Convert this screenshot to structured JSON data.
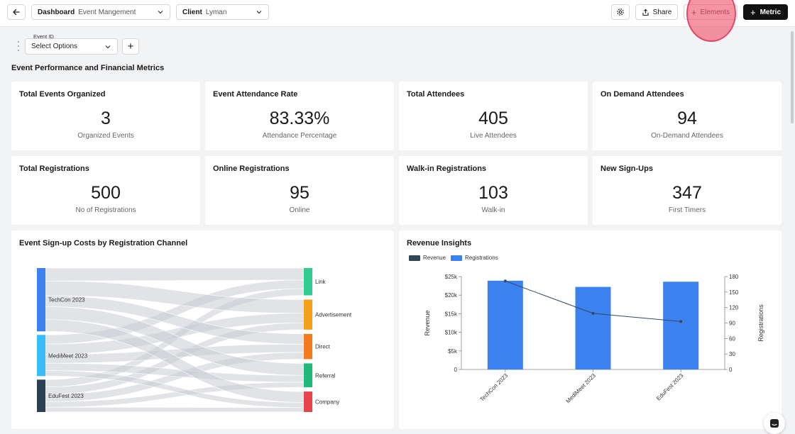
{
  "topbar": {
    "dashboard_label": "Dashboard",
    "dashboard_value": "Event Mangement",
    "client_label": "Client",
    "client_value": "Lyman",
    "share_label": "Share",
    "elements_label": "Elements",
    "metric_label": "Metric"
  },
  "filter": {
    "label": "Event ID",
    "placeholder": "Select Options"
  },
  "section_title": "Event Performance and Financial Metrics",
  "kpis": [
    {
      "title": "Total Events Organized",
      "value": "3",
      "sub": "Organized Events"
    },
    {
      "title": "Event Attendance Rate",
      "value": "83.33%",
      "sub": "Attendance Percentage"
    },
    {
      "title": "Total Attendees",
      "value": "405",
      "sub": "Live Attendees"
    },
    {
      "title": "On Demand Attendees",
      "value": "94",
      "sub": "On-Demand Attendees"
    },
    {
      "title": "Total Registrations",
      "value": "500",
      "sub": "No of Registrations"
    },
    {
      "title": "Online Registrations",
      "value": "95",
      "sub": "Online"
    },
    {
      "title": "Walk-in Registrations",
      "value": "103",
      "sub": "Walk-in"
    },
    {
      "title": "New Sign-Ups",
      "value": "347",
      "sub": "First Timers"
    }
  ],
  "colors": {
    "revenue": "#33475b",
    "registrations": "#3b82f0",
    "primary_button": "#111111",
    "techcon": "#3b82f0",
    "medimeet": "#38bdf8",
    "edufest": "#2d3f55",
    "link": "#2ecc8f",
    "advertisement": "#f5a01a",
    "direct": "#f47a22",
    "referral": "#1fba7a",
    "company": "#e8424a"
  },
  "chart_data": [
    {
      "type": "sankey",
      "title": "Event Sign-up Costs by Registration Channel",
      "sources": [
        {
          "name": "TechCon 2023",
          "weight": 172
        },
        {
          "name": "MediMeet 2023",
          "weight": 112
        },
        {
          "name": "EduFest 2023",
          "weight": 88
        }
      ],
      "targets": [
        {
          "name": "Link",
          "weight": 80
        },
        {
          "name": "Advertisement",
          "weight": 88
        },
        {
          "name": "Direct",
          "weight": 74
        },
        {
          "name": "Referral",
          "weight": 70
        },
        {
          "name": "Company",
          "weight": 60
        }
      ],
      "links": [
        {
          "source": "TechCon 2023",
          "target": "Link",
          "value": 35
        },
        {
          "source": "TechCon 2023",
          "target": "Advertisement",
          "value": 40
        },
        {
          "source": "TechCon 2023",
          "target": "Direct",
          "value": 30
        },
        {
          "source": "TechCon 2023",
          "target": "Referral",
          "value": 35
        },
        {
          "source": "TechCon 2023",
          "target": "Company",
          "value": 32
        },
        {
          "source": "MediMeet 2023",
          "target": "Link",
          "value": 25
        },
        {
          "source": "MediMeet 2023",
          "target": "Advertisement",
          "value": 28
        },
        {
          "source": "MediMeet 2023",
          "target": "Direct",
          "value": 24
        },
        {
          "source": "MediMeet 2023",
          "target": "Referral",
          "value": 20
        },
        {
          "source": "MediMeet 2023",
          "target": "Company",
          "value": 15
        },
        {
          "source": "EduFest 2023",
          "target": "Link",
          "value": 20
        },
        {
          "source": "EduFest 2023",
          "target": "Advertisement",
          "value": 20
        },
        {
          "source": "EduFest 2023",
          "target": "Direct",
          "value": 20
        },
        {
          "source": "EduFest 2023",
          "target": "Referral",
          "value": 15
        },
        {
          "source": "EduFest 2023",
          "target": "Company",
          "value": 13
        }
      ]
    },
    {
      "type": "bar",
      "title": "Revenue Insights",
      "categories": [
        "TechCon 2023",
        "MediMeet 2023",
        "EduFest 2023"
      ],
      "series": [
        {
          "name": "Revenue",
          "type": "line",
          "axis": "left",
          "values": [
            23800,
            15100,
            12900
          ]
        },
        {
          "name": "Registrations",
          "type": "bar",
          "axis": "right",
          "values": [
            172,
            160,
            170
          ]
        }
      ],
      "ylabel": "Revenue",
      "y2label": "Registrations",
      "ylim": [
        0,
        25000
      ],
      "y2lim": [
        0,
        180
      ],
      "yticks": [
        "0",
        "$5k",
        "$10k",
        "$15k",
        "$20k",
        "$25k"
      ],
      "y2ticks": [
        "0",
        "30",
        "60",
        "90",
        "120",
        "150",
        "180"
      ],
      "legend": "top-left",
      "grid": false
    }
  ]
}
